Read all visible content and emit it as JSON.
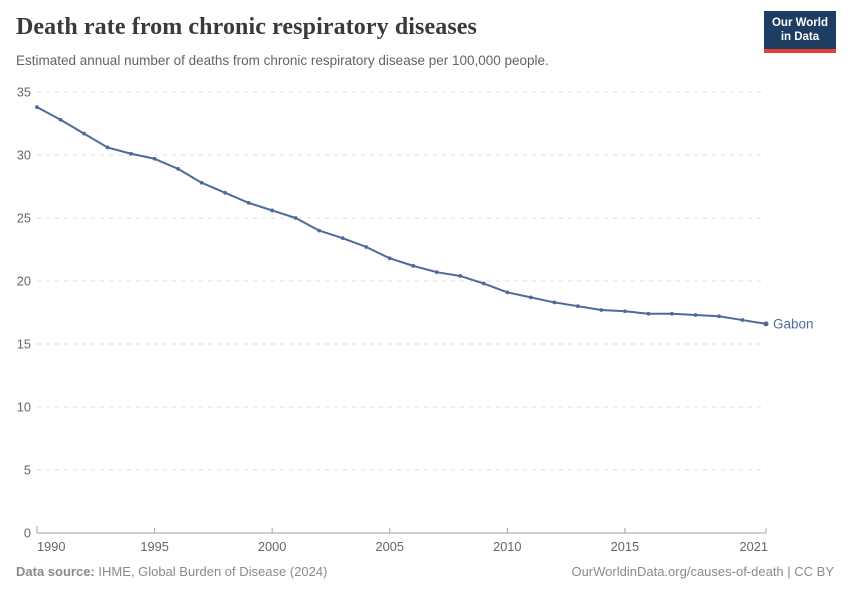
{
  "header": {
    "title": "Death rate from chronic respiratory diseases",
    "subtitle": "Estimated annual number of deaths from chronic respiratory disease per 100,000 people.",
    "logo": {
      "line1": "Our World",
      "line2": "in Data",
      "bg_color": "#1d3d63",
      "accent_color": "#e63e36"
    }
  },
  "chart_data": {
    "type": "line",
    "title": "Death rate from chronic respiratory diseases",
    "xlabel": "",
    "ylabel": "",
    "x": [
      1990,
      1991,
      1992,
      1993,
      1994,
      1995,
      1996,
      1997,
      1998,
      1999,
      2000,
      2001,
      2002,
      2003,
      2004,
      2005,
      2006,
      2007,
      2008,
      2009,
      2010,
      2011,
      2012,
      2013,
      2014,
      2015,
      2016,
      2017,
      2018,
      2019,
      2020,
      2021
    ],
    "series": [
      {
        "name": "Gabon",
        "color": "#4c6a9c",
        "values": [
          33.8,
          32.8,
          31.7,
          30.6,
          30.1,
          29.7,
          28.9,
          27.8,
          27.0,
          26.2,
          25.6,
          25.0,
          24.0,
          23.4,
          22.7,
          21.8,
          21.2,
          20.7,
          20.4,
          19.8,
          19.1,
          18.7,
          18.3,
          18.0,
          17.7,
          17.6,
          17.4,
          17.4,
          17.3,
          17.2,
          16.9,
          16.6
        ]
      }
    ],
    "ylim": [
      0,
      35
    ],
    "yticks": [
      0,
      5,
      10,
      15,
      20,
      25,
      30,
      35
    ],
    "xticks": [
      1990,
      1995,
      2000,
      2005,
      2010,
      2015,
      2021
    ],
    "grid": "horizontal-dashed",
    "legend_position": "end-of-line-label",
    "gridline_color": "#dcdcdc",
    "axis_color": "#a3a3a3",
    "tick_label_color": "#666666"
  },
  "footer": {
    "source_label": "Data source:",
    "source_text": " IHME, Global Burden of Disease (2024)",
    "credit": "OurWorldinData.org/causes-of-death | CC BY"
  }
}
